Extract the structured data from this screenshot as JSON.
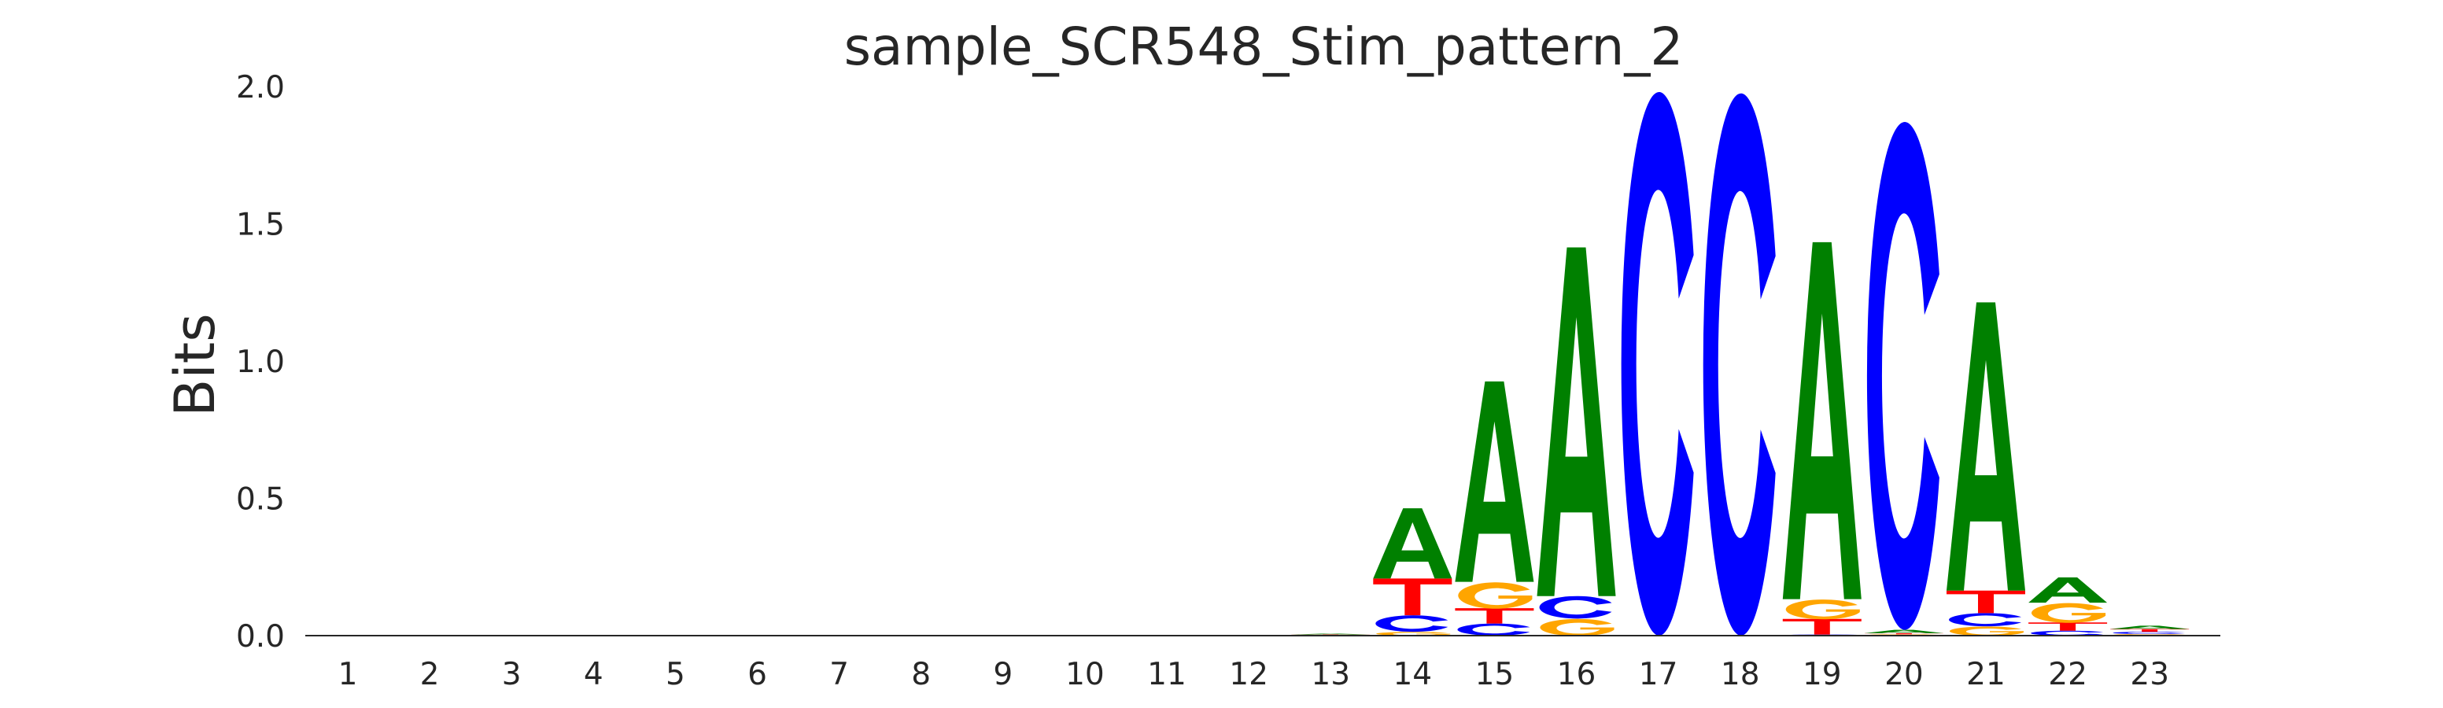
{
  "chart_data": {
    "type": "sequence-logo",
    "title": "sample_SCR548_Stim_pattern_2",
    "xlabel": "",
    "ylabel": "Bits",
    "ylim": [
      0,
      2.0
    ],
    "yticks": [
      "0.0",
      "0.5",
      "1.0",
      "1.5",
      "2.0"
    ],
    "ytick_values": [
      0,
      0.5,
      1.0,
      1.5,
      2.0
    ],
    "categories": [
      "1",
      "2",
      "3",
      "4",
      "5",
      "6",
      "7",
      "8",
      "9",
      "10",
      "11",
      "12",
      "13",
      "14",
      "15",
      "16",
      "17",
      "18",
      "19",
      "20",
      "21",
      "22",
      "23"
    ],
    "grid": false,
    "colors": {
      "A": "#008000",
      "C": "#0000ff",
      "G": "#ffa500",
      "T": "#ff0000"
    },
    "positions": [
      {
        "pos": 1,
        "stack": []
      },
      {
        "pos": 2,
        "stack": []
      },
      {
        "pos": 3,
        "stack": []
      },
      {
        "pos": 4,
        "stack": []
      },
      {
        "pos": 5,
        "stack": []
      },
      {
        "pos": 6,
        "stack": []
      },
      {
        "pos": 7,
        "stack": []
      },
      {
        "pos": 8,
        "stack": []
      },
      {
        "pos": 9,
        "stack": []
      },
      {
        "pos": 10,
        "stack": []
      },
      {
        "pos": 11,
        "stack": []
      },
      {
        "pos": 12,
        "stack": []
      },
      {
        "pos": 13,
        "stack": [
          {
            "base": "G",
            "bits": 0.002
          },
          {
            "base": "T",
            "bits": 0.002
          },
          {
            "base": "A",
            "bits": 0.003
          }
        ]
      },
      {
        "pos": 14,
        "stack": [
          {
            "base": "G",
            "bits": 0.014
          },
          {
            "base": "C",
            "bits": 0.06
          },
          {
            "base": "T",
            "bits": 0.134
          },
          {
            "base": "A",
            "bits": 0.256
          }
        ]
      },
      {
        "pos": 15,
        "stack": [
          {
            "base": "C",
            "bits": 0.044
          },
          {
            "base": "T",
            "bits": 0.056
          },
          {
            "base": "G",
            "bits": 0.096
          },
          {
            "base": "A",
            "bits": 0.73
          }
        ]
      },
      {
        "pos": 16,
        "stack": [
          {
            "base": "G",
            "bits": 0.062
          },
          {
            "base": "C",
            "bits": 0.082
          },
          {
            "base": "A",
            "bits": 1.27
          }
        ]
      },
      {
        "pos": 17,
        "stack": [
          {
            "base": "C",
            "bits": 1.98
          }
        ]
      },
      {
        "pos": 18,
        "stack": [
          {
            "base": "C",
            "bits": 1.975
          }
        ]
      },
      {
        "pos": 19,
        "stack": [
          {
            "base": "C",
            "bits": 0.004
          },
          {
            "base": "T",
            "bits": 0.057
          },
          {
            "base": "G",
            "bits": 0.072
          },
          {
            "base": "A",
            "bits": 1.3
          }
        ]
      },
      {
        "pos": 20,
        "stack": [
          {
            "base": "G",
            "bits": 0.005
          },
          {
            "base": "T",
            "bits": 0.004
          },
          {
            "base": "A",
            "bits": 0.012
          },
          {
            "base": "C",
            "bits": 1.85
          }
        ]
      },
      {
        "pos": 21,
        "stack": [
          {
            "base": "G",
            "bits": 0.034
          },
          {
            "base": "C",
            "bits": 0.048
          },
          {
            "base": "T",
            "bits": 0.082
          },
          {
            "base": "A",
            "bits": 1.05
          }
        ]
      },
      {
        "pos": 22,
        "stack": [
          {
            "base": "C",
            "bits": 0.018
          },
          {
            "base": "T",
            "bits": 0.03
          },
          {
            "base": "G",
            "bits": 0.072
          },
          {
            "base": "A",
            "bits": 0.092
          }
        ]
      },
      {
        "pos": 23,
        "stack": [
          {
            "base": "G",
            "bits": 0.006
          },
          {
            "base": "C",
            "bits": 0.008
          },
          {
            "base": "T",
            "bits": 0.01
          },
          {
            "base": "A",
            "bits": 0.012
          }
        ]
      }
    ]
  }
}
